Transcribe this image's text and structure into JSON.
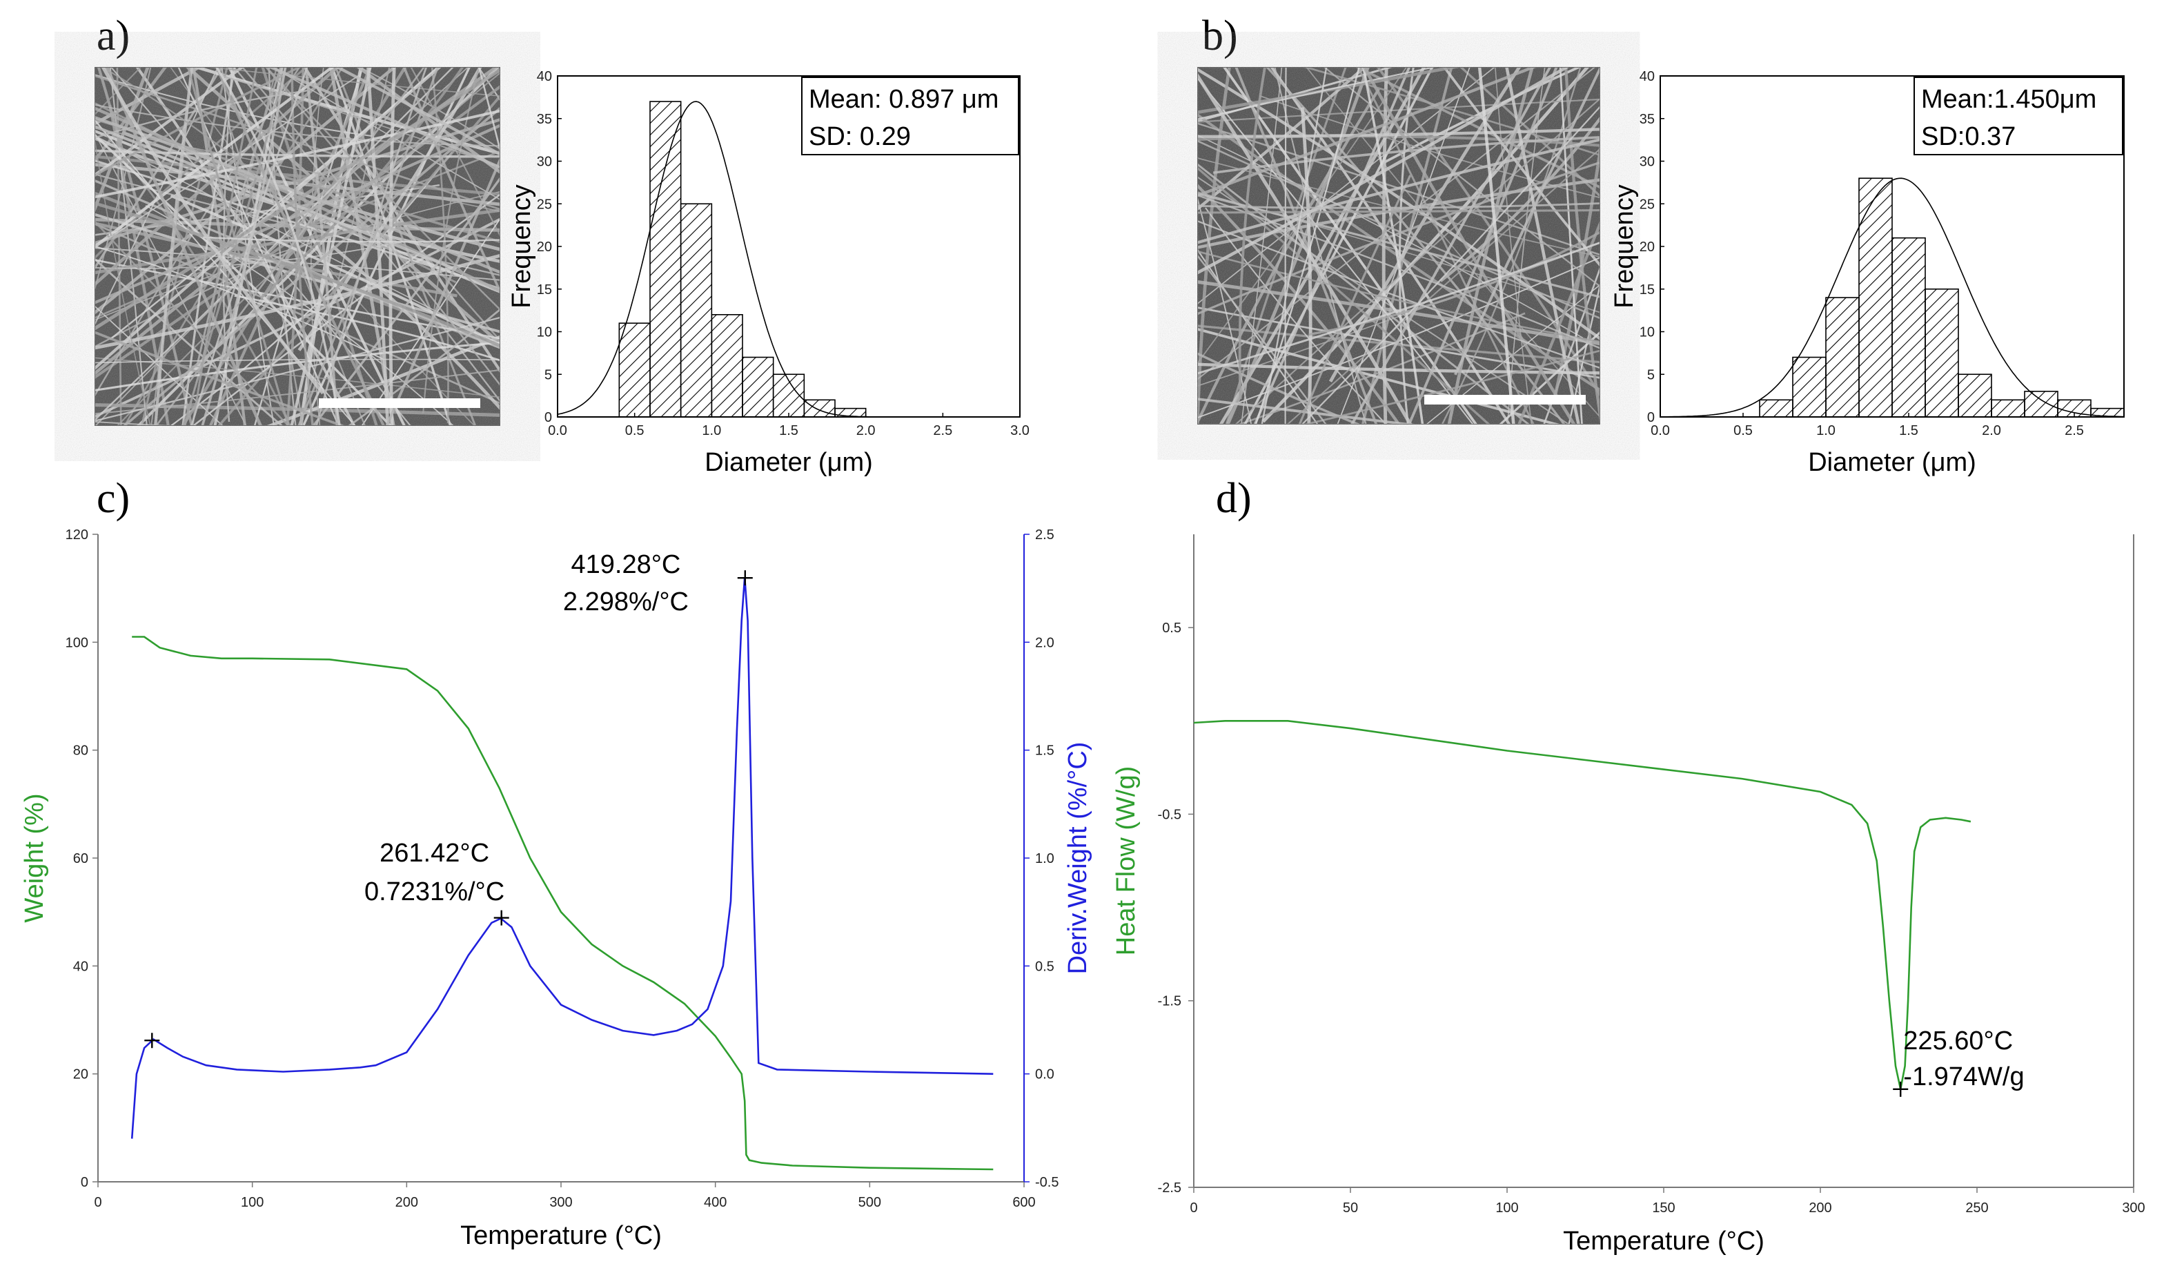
{
  "panels": {
    "a": {
      "label": "a)"
    },
    "b": {
      "label": "b)"
    },
    "c": {
      "label": "c)"
    },
    "d": {
      "label": "d)"
    }
  },
  "chart_data": [
    {
      "id": "a",
      "type": "bar",
      "title": "",
      "xlabel": "Diameter (μm)",
      "ylabel": "Frequency",
      "xlim": [
        0,
        3.0
      ],
      "ylim": [
        0,
        40
      ],
      "xticks": [
        0.0,
        0.5,
        1.0,
        1.5,
        2.0,
        2.5,
        3.0
      ],
      "xtick_labels": [
        "0.0",
        "0.5",
        "1.0",
        "1.5",
        "2.0",
        "2.5",
        "3.0"
      ],
      "yticks": [
        0,
        5,
        10,
        15,
        20,
        25,
        30,
        35,
        40
      ],
      "ytick_labels": [
        "0",
        "5",
        "10",
        "15",
        "20",
        "25",
        "30",
        "35",
        "40"
      ],
      "bins": [
        [
          0.4,
          0.6
        ],
        [
          0.6,
          0.8
        ],
        [
          0.8,
          1.0
        ],
        [
          1.0,
          1.2
        ],
        [
          1.2,
          1.4
        ],
        [
          1.4,
          1.6
        ],
        [
          1.6,
          1.8
        ],
        [
          1.8,
          2.0
        ]
      ],
      "values": [
        11,
        37,
        25,
        12,
        7,
        5,
        2,
        1
      ],
      "fit": {
        "type": "normal",
        "mean": 0.897,
        "sd": 0.29,
        "peak": 37
      },
      "legend": {
        "mean": "Mean: 0.897 μm",
        "sd": "SD: 0.29"
      }
    },
    {
      "id": "b",
      "type": "bar",
      "title": "",
      "xlabel": "Diameter (μm)",
      "ylabel": "Frequency",
      "xlim": [
        0,
        2.8
      ],
      "ylim": [
        0,
        40
      ],
      "xticks": [
        0.0,
        0.5,
        1.0,
        1.5,
        2.0,
        2.5
      ],
      "xtick_labels": [
        "0.0",
        "0.5",
        "1.0",
        "1.5",
        "2.0",
        "2.5"
      ],
      "yticks": [
        0,
        5,
        10,
        15,
        20,
        25,
        30,
        35,
        40
      ],
      "ytick_labels": [
        "0",
        "5",
        "10",
        "15",
        "20",
        "25",
        "30",
        "35",
        "40"
      ],
      "bins": [
        [
          0.6,
          0.8
        ],
        [
          0.8,
          1.0
        ],
        [
          1.0,
          1.2
        ],
        [
          1.2,
          1.4
        ],
        [
          1.4,
          1.6
        ],
        [
          1.6,
          1.8
        ],
        [
          1.8,
          2.0
        ],
        [
          2.0,
          2.2
        ],
        [
          2.2,
          2.4
        ],
        [
          2.4,
          2.6
        ],
        [
          2.6,
          2.8
        ]
      ],
      "values": [
        2,
        7,
        14,
        28,
        21,
        15,
        5,
        2,
        3,
        2,
        1
      ],
      "fit": {
        "type": "normal",
        "mean": 1.45,
        "sd": 0.37,
        "peak": 28
      },
      "legend": {
        "mean": "Mean:1.450μm",
        "sd": "SD:0.37"
      }
    },
    {
      "id": "c",
      "type": "line",
      "title": "",
      "xlabel": "Temperature (°C)",
      "ylabel": "Weight (%)",
      "ylabel_right": "Deriv.Weight (%/°C)",
      "xlim": [
        0,
        600
      ],
      "ylim": [
        0,
        120
      ],
      "ylim_right": [
        -0.5,
        2.5
      ],
      "xticks": [
        0,
        100,
        200,
        300,
        400,
        500,
        600
      ],
      "xtick_labels": [
        "0",
        "100",
        "200",
        "300",
        "400",
        "500",
        "600"
      ],
      "yticks": [
        0,
        20,
        40,
        60,
        80,
        100,
        120
      ],
      "ytick_labels": [
        "0",
        "20",
        "40",
        "60",
        "80",
        "100",
        "120"
      ],
      "yticks_right": [
        -0.5,
        0.0,
        0.5,
        1.0,
        1.5,
        2.0,
        2.5
      ],
      "ytick_labels_right": [
        "-0.5",
        "0.0",
        "0.5",
        "1.0",
        "1.5",
        "2.0",
        "2.5"
      ],
      "series": [
        {
          "name": "Weight",
          "axis": "left",
          "color": "#2e9e2e",
          "x": [
            22,
            30,
            40,
            60,
            80,
            100,
            150,
            200,
            220,
            240,
            260,
            280,
            300,
            320,
            340,
            360,
            380,
            400,
            410,
            417,
            419,
            420,
            422,
            430,
            450,
            500,
            550,
            580
          ],
          "y": [
            101,
            101,
            99,
            97.5,
            97,
            97,
            96.8,
            95,
            91,
            84,
            73,
            60,
            50,
            44,
            40,
            37,
            33,
            27,
            23,
            20,
            15,
            5,
            4,
            3.5,
            3,
            2.6,
            2.4,
            2.3
          ]
        },
        {
          "name": "Deriv. Weight",
          "axis": "right",
          "color": "#2020dd",
          "x": [
            22,
            25,
            30,
            36,
            45,
            55,
            70,
            90,
            120,
            150,
            170,
            180,
            200,
            220,
            240,
            255,
            261,
            268,
            280,
            300,
            320,
            340,
            360,
            375,
            385,
            395,
            405,
            410,
            414,
            417,
            419,
            421,
            424,
            428,
            440,
            500,
            580
          ],
          "y": [
            -0.3,
            0.0,
            0.12,
            0.16,
            0.12,
            0.08,
            0.04,
            0.02,
            0.01,
            0.02,
            0.03,
            0.04,
            0.1,
            0.3,
            0.55,
            0.7,
            0.72,
            0.68,
            0.5,
            0.32,
            0.25,
            0.2,
            0.18,
            0.2,
            0.23,
            0.3,
            0.5,
            0.8,
            1.6,
            2.1,
            2.3,
            2.1,
            1.0,
            0.05,
            0.02,
            0.01,
            0.0
          ]
        }
      ],
      "markers": [
        {
          "x": 35,
          "y": 0.155,
          "axis": "right"
        },
        {
          "x": 261.42,
          "y": 0.7231,
          "axis": "right"
        },
        {
          "x": 419.28,
          "y": 2.298,
          "axis": "right"
        }
      ],
      "annotations": [
        {
          "lines": [
            "261.42°C",
            "0.7231%/°C"
          ]
        },
        {
          "lines": [
            "419.28°C",
            "2.298%/°C"
          ]
        }
      ]
    },
    {
      "id": "d",
      "type": "line",
      "title": "",
      "xlabel": "Temperature (°C)",
      "ylabel": "Heat Flow (W/g)",
      "xlim": [
        0,
        300
      ],
      "ylim": [
        -2.5,
        1.0
      ],
      "xticks": [
        0,
        50,
        100,
        150,
        200,
        250,
        300
      ],
      "xtick_labels": [
        "0",
        "50",
        "100",
        "150",
        "200",
        "250",
        "300"
      ],
      "yticks": [
        -2.5,
        -1.5,
        -0.5,
        0.5
      ],
      "ytick_labels": [
        "-2.5",
        "-1.5",
        "-0.5",
        "0.5"
      ],
      "series": [
        {
          "name": "Heat Flow",
          "color": "#2e9e2e",
          "x": [
            0,
            10,
            20,
            30,
            50,
            75,
            100,
            125,
            150,
            175,
            200,
            210,
            215,
            218,
            220,
            222,
            224,
            225.6,
            227,
            228,
            229,
            230,
            232,
            235,
            240,
            245,
            248
          ],
          "y": [
            -0.01,
            0.0,
            0.0,
            0.0,
            -0.04,
            -0.1,
            -0.16,
            -0.21,
            -0.26,
            -0.31,
            -0.38,
            -0.45,
            -0.55,
            -0.75,
            -1.1,
            -1.5,
            -1.85,
            -1.974,
            -1.85,
            -1.5,
            -1.0,
            -0.7,
            -0.57,
            -0.53,
            -0.52,
            -0.53,
            -0.54
          ]
        }
      ],
      "markers": [
        {
          "x": 225.6,
          "y": -1.974
        }
      ],
      "annotations": [
        {
          "lines": [
            "225.60°C",
            "-1.974W/g"
          ]
        }
      ]
    }
  ]
}
